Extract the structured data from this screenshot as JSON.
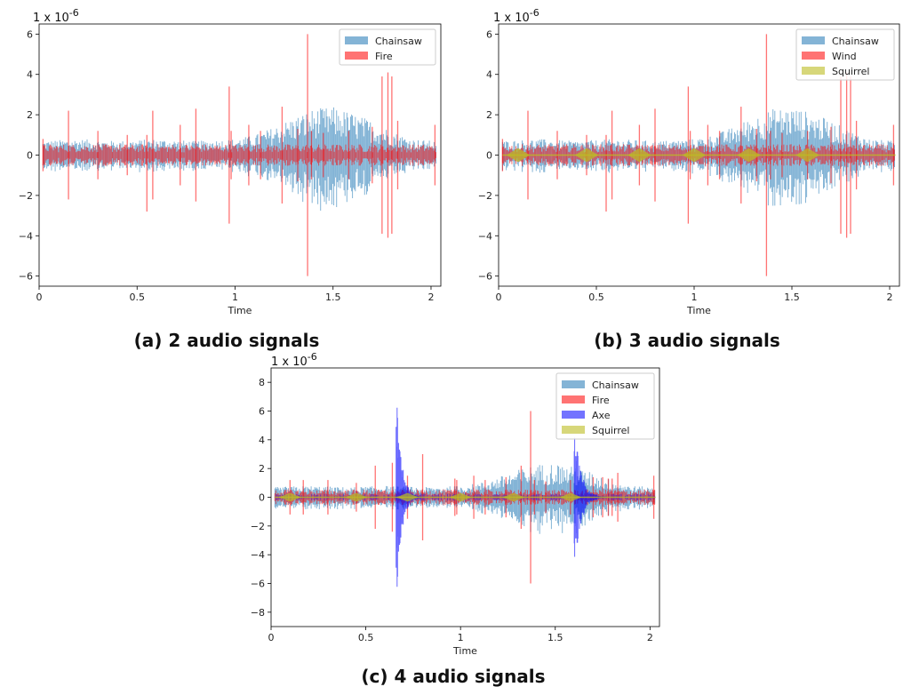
{
  "chart_data": [
    {
      "type": "line",
      "caption": "(a) 2 audio signals",
      "scale_label": "1 x 10",
      "scale_exponent": "-6",
      "xlabel": "Time",
      "xlim": [
        0,
        2.05
      ],
      "ylim": [
        -6.5,
        6.5
      ],
      "xticks": [
        0,
        0.5,
        1,
        1.5,
        2
      ],
      "xtick_labels": [
        "0",
        "0.5",
        "1",
        "1.5",
        "2"
      ],
      "yticks": [
        -6,
        -4,
        -2,
        0,
        2,
        4,
        6
      ],
      "ytick_labels": [
        "−6",
        "−4",
        "−2",
        "0",
        "2",
        "4",
        "6"
      ],
      "legend_position": "top-right",
      "series": [
        {
          "name": "Chainsaw",
          "color": "#1f77b4",
          "kind": "envelope",
          "envelope_x": [
            0,
            0.2,
            0.4,
            0.6,
            0.8,
            1.0,
            1.1,
            1.2,
            1.3,
            1.4,
            1.5,
            1.6,
            1.7,
            1.8,
            1.9,
            2.03
          ],
          "envelope_amp": [
            0.7,
            0.8,
            0.7,
            0.8,
            0.7,
            0.8,
            1.0,
            1.4,
            1.9,
            2.3,
            2.4,
            2.1,
            1.7,
            1.2,
            0.8,
            0.7
          ]
        },
        {
          "name": "Fire",
          "color": "#ff0000",
          "kind": "spikes",
          "noise_amp": 0.45,
          "spikes_x": [
            0.02,
            0.15,
            0.3,
            0.45,
            0.55,
            0.58,
            0.72,
            0.8,
            0.97,
            0.98,
            1.07,
            1.13,
            1.24,
            1.32,
            1.37,
            1.39,
            1.45,
            1.58,
            1.7,
            1.75,
            1.78,
            1.8,
            1.83,
            2.02
          ],
          "spikes_hi": [
            0.8,
            2.2,
            1.2,
            1.0,
            1.0,
            2.2,
            1.5,
            2.3,
            3.4,
            1.2,
            1.5,
            1.2,
            2.4,
            1.3,
            6.0,
            1.2,
            1.1,
            1.2,
            1.4,
            3.9,
            4.1,
            3.9,
            1.7,
            1.5
          ],
          "spikes_lo": [
            -0.8,
            -2.2,
            -1.2,
            -1.0,
            -2.8,
            -2.2,
            -1.5,
            -2.3,
            -3.4,
            -1.2,
            -1.5,
            -1.2,
            -2.4,
            -1.3,
            -6.0,
            -1.2,
            -1.1,
            -1.2,
            -1.4,
            -3.9,
            -4.1,
            -3.9,
            -1.7,
            -1.5
          ]
        }
      ]
    },
    {
      "type": "line",
      "caption": "(b)  3 audio signals",
      "scale_label": "1 x 10",
      "scale_exponent": "-6",
      "xlabel": "Time",
      "xlim": [
        0,
        2.05
      ],
      "ylim": [
        -6.5,
        6.5
      ],
      "xticks": [
        0,
        0.5,
        1,
        1.5,
        2
      ],
      "xtick_labels": [
        "0",
        "0.5",
        "1",
        "1.5",
        "2"
      ],
      "yticks": [
        -6,
        -4,
        -2,
        0,
        2,
        4,
        6
      ],
      "ytick_labels": [
        "−6",
        "−4",
        "−2",
        "0",
        "2",
        "4",
        "6"
      ],
      "legend_position": "top-right",
      "series": [
        {
          "name": "Chainsaw",
          "color": "#1f77b4",
          "kind": "envelope",
          "envelope_x": [
            0,
            0.2,
            0.4,
            0.6,
            0.8,
            1.0,
            1.1,
            1.2,
            1.3,
            1.4,
            1.5,
            1.6,
            1.7,
            1.8,
            1.9,
            2.03
          ],
          "envelope_amp": [
            0.7,
            0.8,
            0.7,
            0.8,
            0.7,
            0.8,
            1.0,
            1.4,
            1.9,
            2.3,
            2.4,
            2.1,
            1.7,
            1.2,
            0.8,
            0.7
          ]
        },
        {
          "name": "Wind",
          "color": "#ff0000",
          "kind": "spikes",
          "noise_amp": 0.45,
          "spikes_x": [
            0.02,
            0.15,
            0.3,
            0.45,
            0.55,
            0.58,
            0.72,
            0.8,
            0.97,
            0.98,
            1.07,
            1.13,
            1.24,
            1.32,
            1.37,
            1.39,
            1.45,
            1.58,
            1.7,
            1.75,
            1.78,
            1.8,
            1.83,
            2.02
          ],
          "spikes_hi": [
            0.8,
            2.2,
            1.2,
            1.0,
            1.0,
            2.2,
            1.5,
            2.3,
            3.4,
            1.2,
            1.5,
            1.2,
            2.4,
            1.3,
            6.0,
            1.2,
            1.1,
            1.2,
            1.4,
            3.9,
            4.1,
            3.9,
            1.7,
            1.5
          ],
          "spikes_lo": [
            -0.8,
            -2.2,
            -1.2,
            -1.0,
            -2.8,
            -2.2,
            -1.5,
            -2.3,
            -3.4,
            -1.2,
            -1.5,
            -1.2,
            -2.4,
            -1.3,
            -6.0,
            -1.2,
            -1.1,
            -1.2,
            -1.4,
            -3.9,
            -4.1,
            -3.9,
            -1.7,
            -1.5
          ]
        },
        {
          "name": "Squirrel",
          "color": "#bcbd22",
          "kind": "chirps",
          "chirps_x": [
            0.1,
            0.45,
            0.72,
            1.0,
            1.28,
            1.58
          ],
          "chirp_amp": 0.35
        }
      ]
    },
    {
      "type": "line",
      "caption": "(c) 4 audio signals",
      "scale_label": "1 x 10",
      "scale_exponent": "-6",
      "xlabel": "Time",
      "xlim": [
        0,
        2.05
      ],
      "ylim": [
        -9,
        9
      ],
      "xticks": [
        0,
        0.5,
        1,
        1.5,
        2
      ],
      "xtick_labels": [
        "0",
        "0.5",
        "1",
        "1.5",
        "2"
      ],
      "yticks": [
        -8,
        -6,
        -4,
        -2,
        0,
        2,
        4,
        6,
        8
      ],
      "ytick_labels": [
        "−8",
        "−6",
        "−4",
        "−2",
        "0",
        "2",
        "4",
        "6",
        "8"
      ],
      "legend_position": "top-right",
      "series": [
        {
          "name": "Chainsaw",
          "color": "#1f77b4",
          "kind": "envelope",
          "envelope_x": [
            0,
            0.2,
            0.4,
            0.6,
            0.8,
            1.0,
            1.1,
            1.2,
            1.3,
            1.4,
            1.5,
            1.6,
            1.7,
            1.8,
            1.9,
            2.03
          ],
          "envelope_amp": [
            0.7,
            0.8,
            0.7,
            0.8,
            0.7,
            0.8,
            1.0,
            1.4,
            1.9,
            2.3,
            2.4,
            2.1,
            1.7,
            1.2,
            0.8,
            0.7
          ]
        },
        {
          "name": "Fire",
          "color": "#ff0000",
          "kind": "spikes",
          "noise_amp": 0.45,
          "spikes_x": [
            0.1,
            0.17,
            0.3,
            0.45,
            0.55,
            0.64,
            0.72,
            0.8,
            0.97,
            0.98,
            1.07,
            1.13,
            1.24,
            1.32,
            1.37,
            1.39,
            1.45,
            1.58,
            1.7,
            1.75,
            1.78,
            1.8,
            1.83,
            2.02
          ],
          "spikes_hi": [
            1.2,
            1.2,
            1.2,
            1.0,
            2.2,
            2.4,
            1.5,
            3.0,
            1.3,
            1.2,
            1.5,
            1.2,
            1.4,
            2.2,
            6.0,
            1.2,
            1.1,
            1.2,
            1.4,
            1.4,
            1.3,
            1.3,
            1.7,
            1.5
          ],
          "spikes_lo": [
            -1.2,
            -1.2,
            -1.2,
            -1.0,
            -2.2,
            -2.4,
            -1.5,
            -3.0,
            -1.3,
            -1.2,
            -1.5,
            -1.2,
            -1.4,
            -2.2,
            -6.0,
            -1.2,
            -1.1,
            -1.2,
            -1.4,
            -1.4,
            -1.3,
            -1.3,
            -1.7,
            -1.5
          ]
        },
        {
          "name": "Axe",
          "color": "#0000ff",
          "kind": "impacts",
          "impacts_x": [
            0.66,
            1.6
          ],
          "impacts_amp": [
            8.0,
            5.5
          ],
          "impacts_decay": [
            0.08,
            0.1
          ]
        },
        {
          "name": "Squirrel",
          "color": "#bcbd22",
          "kind": "chirps",
          "chirps_x": [
            0.1,
            0.45,
            0.72,
            1.0,
            1.28,
            1.58
          ],
          "chirp_amp": 0.3
        }
      ]
    }
  ]
}
